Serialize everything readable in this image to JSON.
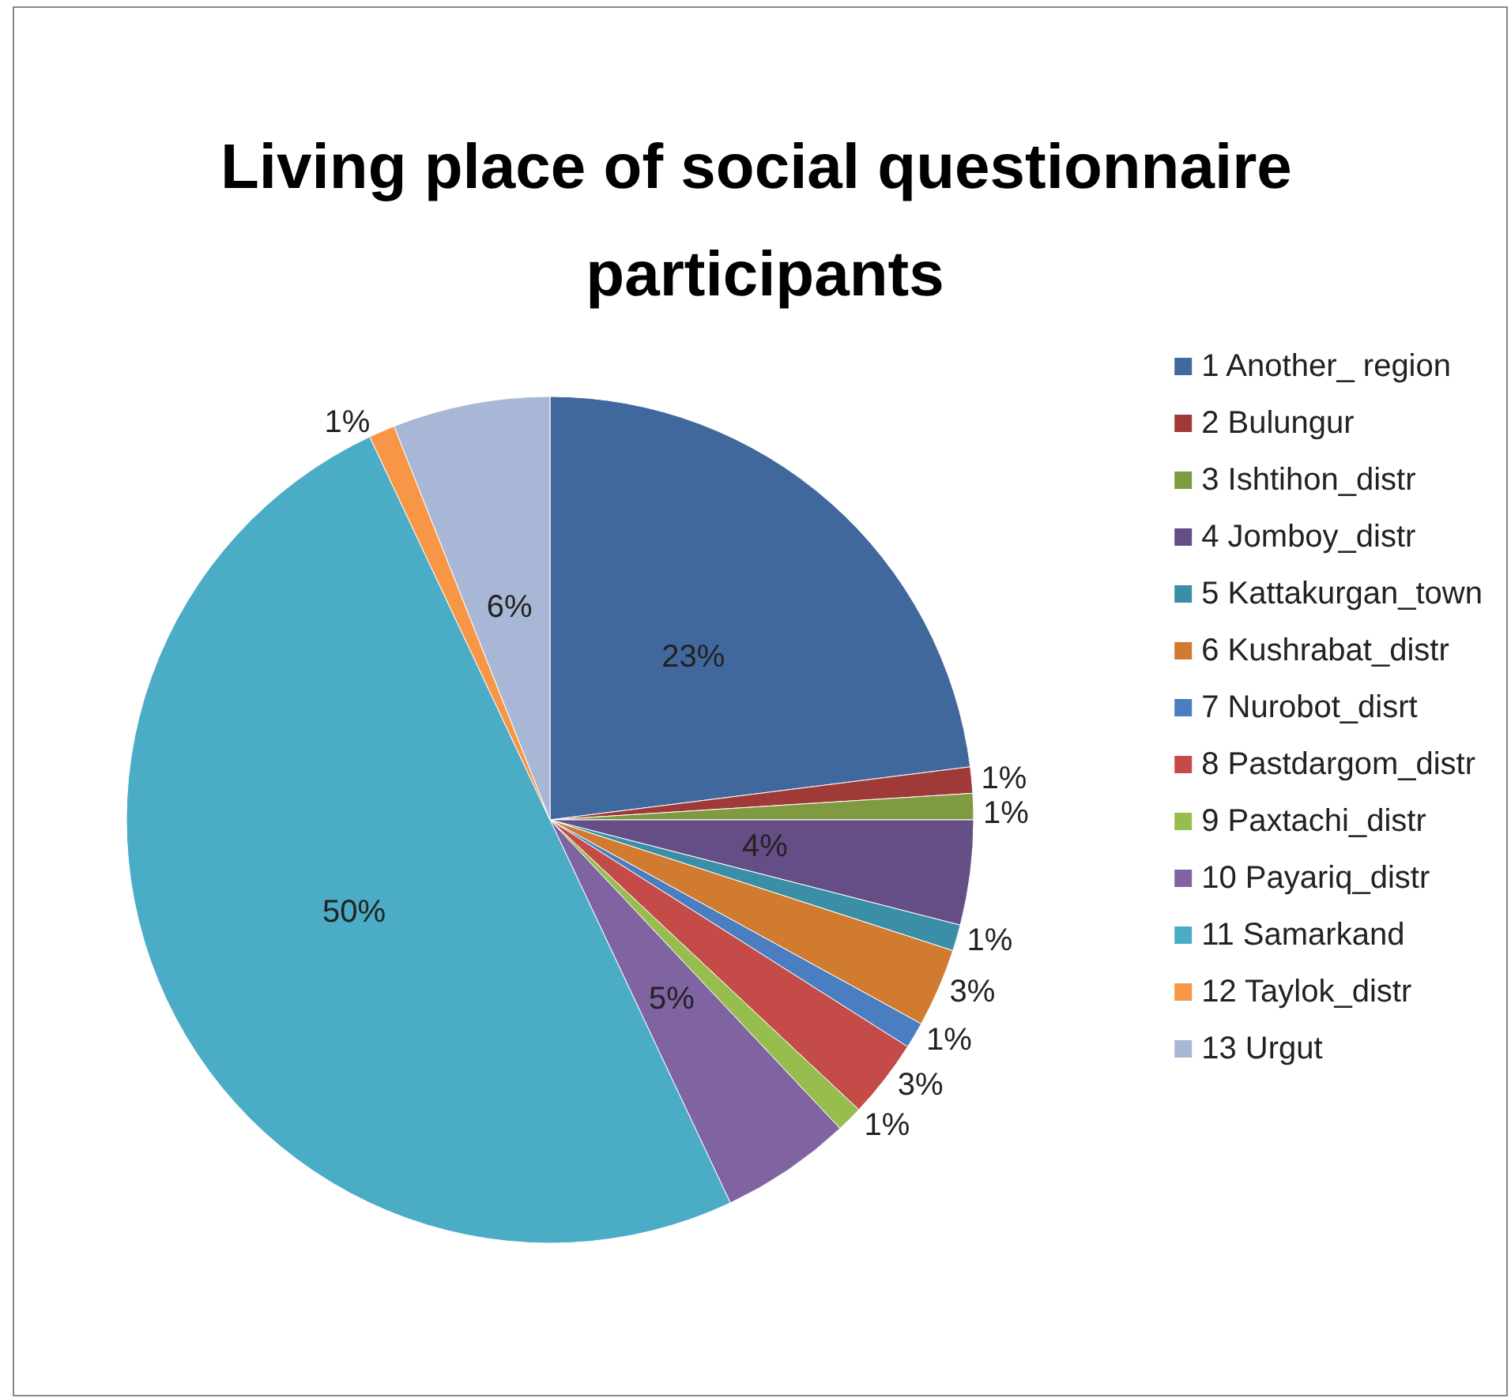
{
  "chart_data": {
    "type": "pie",
    "title": "Living place of social questionnaire participants",
    "categories": [
      "1 Another_ region",
      "2 Bulungur",
      "3 Ishtihon_distr",
      "4 Jomboy_distr",
      "5 Kattakurgan_town",
      "6 Kushrabat_distr",
      "7 Nurobot_disrt",
      "8 Pastdargom_distr",
      "9 Paxtachi_distr",
      "10 Payariq_distr",
      "11 Samarkand",
      "12 Taylok_distr",
      "13 Urgut"
    ],
    "values": [
      23,
      1,
      1,
      4,
      1,
      3,
      1,
      3,
      1,
      5,
      50,
      1,
      6
    ],
    "colors": [
      "#41689c",
      "#a03a38",
      "#7f9a41",
      "#654d86",
      "#3a8ea5",
      "#d07b30",
      "#4a7ec0",
      "#c54b48",
      "#98bd4f",
      "#8064a2",
      "#4bacc6",
      "#f79646",
      "#a9b7d6"
    ],
    "value_labels": [
      "23%",
      "1%",
      "1%",
      "4%",
      "1%",
      "3%",
      "1%",
      "3%",
      "1%",
      "5%",
      "50%",
      "1%",
      "6%"
    ],
    "legend": "right"
  }
}
